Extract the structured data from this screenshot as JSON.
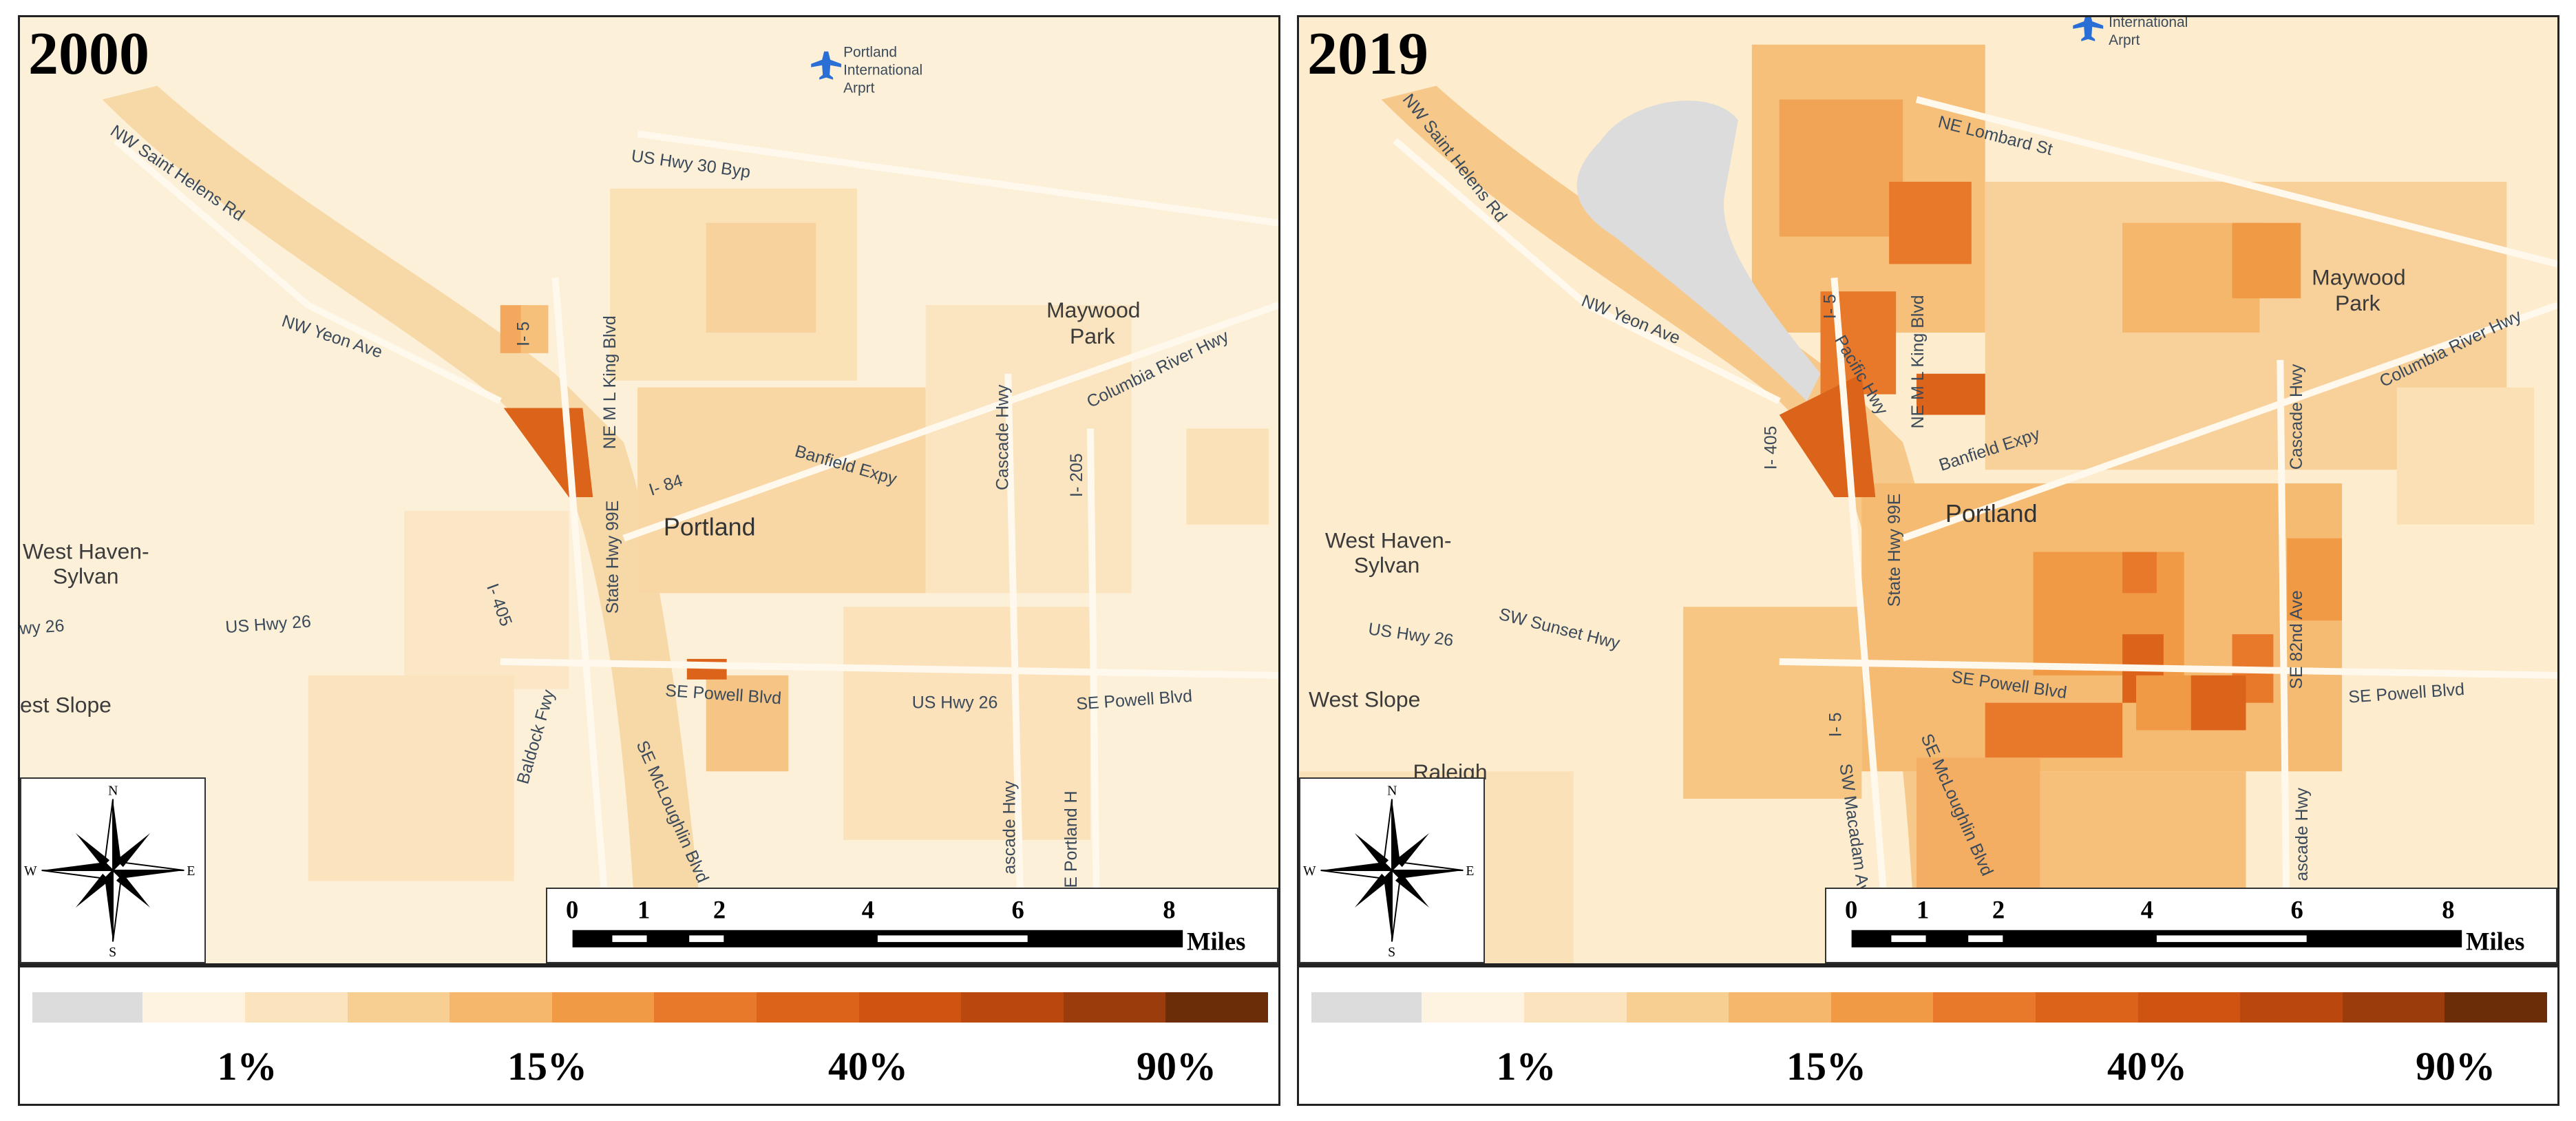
{
  "maps": [
    {
      "year": "2000",
      "airport": [
        "Portland",
        "International",
        "Arprt"
      ],
      "places": [
        "Maywood",
        "Park",
        "West Haven-",
        "Sylvan",
        "Portland",
        "est Slope"
      ],
      "roads": [
        "NW Saint Helens Rd",
        "NW Yeon Ave",
        "US Hwy 30 Byp",
        "I- 5",
        "NE M L King Blvd",
        "Columbia River Hwy",
        "Cascade Hwy",
        "I- 205",
        "Banfield Expy",
        "I- 84",
        "State Hwy 99E",
        "I- 405",
        "US Hwy 26",
        "wy 26",
        "SE Powell Blvd",
        "US Hwy 26",
        "SE Powell Blvd",
        "Baldock Fwy",
        "SE McLoughlin Blvd",
        "ascade Hwy",
        "E Portland H"
      ]
    },
    {
      "year": "2019",
      "airport": [
        "International",
        "Arprt"
      ],
      "places": [
        "Maywood",
        "Park",
        "West Haven-",
        "Sylvan",
        "Portland",
        "West Slope",
        "Raleigh"
      ],
      "roads": [
        "NW Saint Helens Rd",
        "NE Lombard St",
        "NW Yeon Ave",
        "I- 5",
        "NE M L King Blvd",
        "Pacific Hwy",
        "Columbia River Hwy",
        "Cascade Hwy",
        "Banfield Expy",
        "I- 405",
        "State Hwy 99E",
        "SW Sunset Hwy",
        "US Hwy 26",
        "SE 82nd Ave",
        "SE Powell Blvd",
        "SE Powell Blvd",
        "I- 5",
        "SW Macadam Ave",
        "SE McLoughlin Blvd",
        "ascade Hwy"
      ]
    }
  ],
  "compass": {
    "n": "N",
    "s": "S",
    "e": "E",
    "w": "W"
  },
  "scale": {
    "ticks": [
      "0",
      "1",
      "2",
      "4",
      "6",
      "8"
    ],
    "unit": "Miles"
  },
  "legend": {
    "colors": [
      "#dcdcdc",
      "#fdf3e0",
      "#fbe3bd",
      "#f8cf93",
      "#f5b76b",
      "#f09a45",
      "#e8782a",
      "#dc631a",
      "#cf5412",
      "#b9470e",
      "#9a3c0b",
      "#6b2d07"
    ],
    "labels": [
      "1%",
      "15%",
      "40%",
      "90%"
    ]
  }
}
